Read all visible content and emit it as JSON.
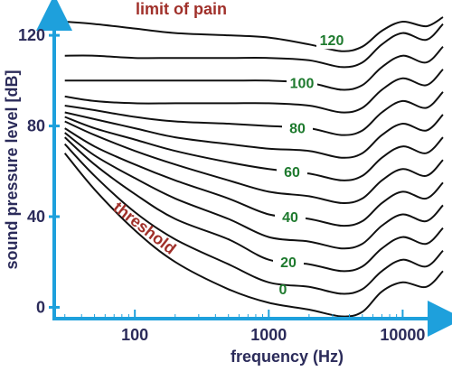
{
  "chart_data": {
    "type": "line",
    "title": "",
    "xlabel": "frequency (Hz)",
    "ylabel": "sound pressure level [dB]",
    "x_scale": "log",
    "xlim": [
      25,
      20000
    ],
    "ylim": [
      -5,
      130
    ],
    "x_ticks": [
      {
        "value": 100,
        "label": "100"
      },
      {
        "value": 1000,
        "label": "1000"
      },
      {
        "value": 10000,
        "label": "10000"
      }
    ],
    "y_ticks": [
      {
        "value": 0,
        "label": "0"
      },
      {
        "value": 40,
        "label": "40"
      },
      {
        "value": 80,
        "label": "80"
      },
      {
        "value": 120,
        "label": "120"
      }
    ],
    "grid": false,
    "annotations": {
      "top": "limit of pain",
      "threshold": "threshold"
    },
    "colors": {
      "axis": "#1ea0dc",
      "curves": "#111111",
      "contour_labels": "#1e7a2e",
      "annotations": "#a0302a",
      "axis_text": "#2b2b5a"
    },
    "x": [
      30,
      50,
      100,
      200,
      500,
      1000,
      2000,
      3500,
      5000,
      7000,
      10000,
      15000,
      20000
    ],
    "series": [
      {
        "name": "0",
        "label": "0",
        "values": [
          68,
          52,
          34,
          20,
          8,
          2,
          -1,
          -4,
          -2,
          7,
          11,
          9,
          16
        ]
      },
      {
        "name": "10",
        "label": "",
        "values": [
          72,
          58,
          42,
          30,
          19,
          11,
          9,
          6,
          8,
          16,
          21,
          18,
          25
        ]
      },
      {
        "name": "20",
        "label": "20",
        "values": [
          75,
          63,
          50,
          39,
          30,
          21,
          19,
          16,
          18,
          26,
          31,
          28,
          35
        ]
      },
      {
        "name": "30",
        "label": "",
        "values": [
          77,
          67,
          57,
          48,
          39,
          31,
          29,
          26,
          28,
          36,
          41,
          38,
          45
        ]
      },
      {
        "name": "40",
        "label": "40",
        "values": [
          79,
          71,
          63,
          56,
          48,
          41,
          39,
          36,
          38,
          46,
          51,
          48,
          55
        ]
      },
      {
        "name": "50",
        "label": "",
        "values": [
          82,
          76,
          69,
          63,
          56,
          51,
          49,
          46,
          48,
          56,
          61,
          58,
          65
        ]
      },
      {
        "name": "60",
        "label": "60",
        "values": [
          84,
          79,
          74,
          69,
          64,
          61,
          59,
          56,
          58,
          66,
          71,
          68,
          75
        ]
      },
      {
        "name": "70",
        "label": "",
        "values": [
          86,
          83,
          79,
          75,
          72,
          70,
          69,
          66,
          68,
          76,
          81,
          78,
          85
        ]
      },
      {
        "name": "80",
        "label": "80",
        "values": [
          89,
          87,
          84,
          82,
          81,
          80,
          79,
          76,
          78,
          86,
          91,
          88,
          95
        ]
      },
      {
        "name": "90",
        "label": "",
        "values": [
          93,
          91,
          90,
          90,
          90,
          90,
          89,
          86,
          88,
          96,
          101,
          98,
          105
        ]
      },
      {
        "name": "100",
        "label": "100",
        "values": [
          100,
          100,
          100,
          100,
          100,
          100,
          99,
          96,
          98,
          106,
          111,
          108,
          115
        ]
      },
      {
        "name": "110",
        "label": "",
        "values": [
          111,
          111,
          110,
          110,
          110,
          110,
          109,
          106,
          108,
          116,
          121,
          118,
          125
        ]
      },
      {
        "name": "120",
        "label": "120",
        "values": [
          126,
          125,
          123,
          121,
          120,
          119,
          116,
          113,
          115,
          122,
          126,
          124,
          128
        ]
      }
    ]
  }
}
